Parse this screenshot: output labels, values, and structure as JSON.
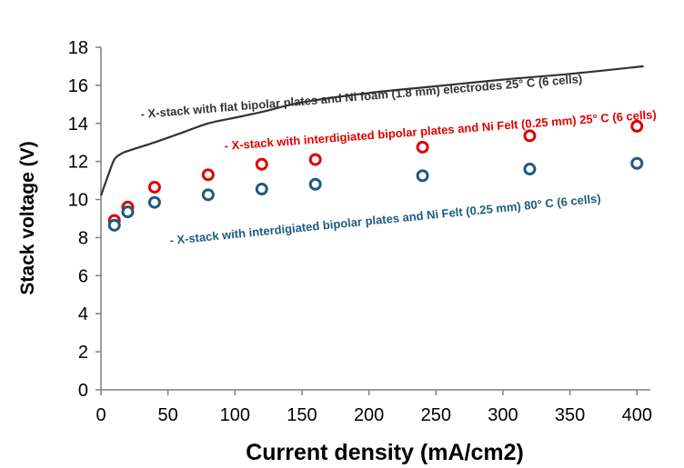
{
  "chart_data": {
    "type": "scatter",
    "title": "",
    "xlabel": "Current density (mA/cm2)",
    "ylabel": "Stack voltage (V)",
    "xlim": [
      0,
      410
    ],
    "ylim": [
      0,
      18
    ],
    "xticks": [
      0,
      50,
      100,
      150,
      200,
      250,
      300,
      350,
      400
    ],
    "yticks": [
      0,
      2,
      4,
      6,
      8,
      10,
      12,
      14,
      16,
      18
    ],
    "grid": false,
    "legend": "none",
    "series": [
      {
        "kind": "line",
        "color": "#333333",
        "label": "- X-stack with flat bipolar plates and Ni foam (1.8 mm) electrodes 25° C (6 cells)",
        "x": [
          0,
          5,
          10,
          15,
          20,
          40,
          60,
          80,
          100,
          120,
          150,
          200,
          250,
          300,
          350,
          405
        ],
        "y": [
          10.2,
          11.2,
          12.1,
          12.4,
          12.55,
          13.0,
          13.5,
          14.0,
          14.3,
          14.6,
          15.1,
          15.6,
          15.95,
          16.3,
          16.6,
          17.0
        ]
      },
      {
        "kind": "markers",
        "color": "#e00000",
        "label": "- X-stack with interdigiated bipolar plates and Ni Felt (0.25 mm)  25° C (6 cells)",
        "x": [
          10,
          20,
          40,
          80,
          120,
          160,
          240,
          320,
          400
        ],
        "y": [
          8.9,
          9.6,
          10.65,
          11.3,
          11.85,
          12.1,
          12.75,
          13.35,
          13.85
        ]
      },
      {
        "kind": "markers",
        "color": "#1f5a7f",
        "label": "- X-stack with interdigiated bipolar plates and Ni Felt (0.25 mm)  80° C (6 cells)",
        "x": [
          10,
          20,
          40,
          80,
          120,
          160,
          240,
          320,
          400
        ],
        "y": [
          8.65,
          9.35,
          9.85,
          10.25,
          10.55,
          10.8,
          11.25,
          11.6,
          11.9
        ]
      }
    ]
  }
}
